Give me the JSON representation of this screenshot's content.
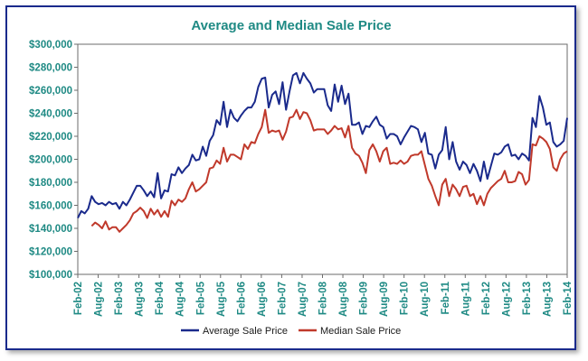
{
  "chart_data": {
    "type": "line",
    "title": "Average and Median Sale Price",
    "xlabel": "",
    "ylabel": "",
    "ylim": [
      100000,
      300000
    ],
    "ytick_labels": [
      "$100,000",
      "$120,000",
      "$140,000",
      "$160,000",
      "$180,000",
      "$200,000",
      "$220,000",
      "$240,000",
      "$260,000",
      "$280,000",
      "$300,000"
    ],
    "xtick_labels": [
      "Feb-02",
      "Aug-02",
      "Feb-03",
      "Aug-03",
      "Feb-04",
      "Aug-04",
      "Feb-05",
      "Aug-05",
      "Feb-06",
      "Aug-06",
      "Feb-07",
      "Aug-07",
      "Feb-08",
      "Aug-08",
      "Feb-09",
      "Aug-09",
      "Feb-10",
      "Aug-10",
      "Feb-11",
      "Aug-11",
      "Feb-12",
      "Aug-12",
      "Feb-13",
      "Aug-13",
      "Feb-14"
    ],
    "legend_position": "bottom",
    "grid": false,
    "series": [
      {
        "name": "Average Sale Price",
        "color": "#1a2a8c",
        "values": [
          149000,
          155000,
          153000,
          157000,
          168000,
          163000,
          161000,
          162000,
          160000,
          163000,
          161000,
          162000,
          157000,
          163000,
          160000,
          165000,
          171000,
          177000,
          177000,
          173000,
          168000,
          172000,
          167000,
          188000,
          166000,
          173000,
          172000,
          187000,
          186000,
          193000,
          188000,
          192000,
          195000,
          204000,
          199000,
          200000,
          211000,
          203000,
          216000,
          221000,
          234000,
          230000,
          250000,
          228000,
          243000,
          236000,
          233000,
          238000,
          242000,
          245000,
          245000,
          250000,
          263000,
          270000,
          271000,
          245000,
          256000,
          259000,
          248000,
          267000,
          243000,
          259000,
          273000,
          275000,
          266000,
          275000,
          270000,
          266000,
          258000,
          261000,
          261000,
          261000,
          247000,
          242000,
          265000,
          250000,
          264000,
          248000,
          257000,
          230000,
          230000,
          232000,
          222000,
          229000,
          228000,
          233000,
          237000,
          230000,
          228000,
          218000,
          222000,
          222000,
          220000,
          213000,
          219000,
          224000,
          229000,
          228000,
          226000,
          215000,
          223000,
          205000,
          204000,
          192000,
          204000,
          208000,
          228000,
          200000,
          215000,
          198000,
          191000,
          198000,
          195000,
          188000,
          196000,
          190000,
          181000,
          198000,
          183000,
          194000,
          205000,
          204000,
          206000,
          211000,
          213000,
          203000,
          204000,
          200000,
          205000,
          203000,
          199000,
          236000,
          228000,
          255000,
          245000,
          230000,
          232000,
          215000,
          211000,
          213000,
          216000,
          236000
        ]
      },
      {
        "name": "Median Sale Price",
        "color": "#c0392b",
        "values": [
          null,
          null,
          null,
          null,
          142000,
          145000,
          143000,
          140000,
          146000,
          139000,
          141000,
          141000,
          137000,
          140000,
          143000,
          147000,
          153000,
          155000,
          158000,
          155000,
          149000,
          157000,
          152000,
          156000,
          150000,
          155000,
          150000,
          164000,
          160000,
          165000,
          163000,
          166000,
          174000,
          180000,
          172000,
          174000,
          177000,
          180000,
          192000,
          193000,
          199000,
          196000,
          210000,
          198000,
          204000,
          204000,
          202000,
          200000,
          213000,
          209000,
          215000,
          214000,
          222000,
          228000,
          243000,
          223000,
          225000,
          224000,
          225000,
          217000,
          224000,
          236000,
          237000,
          243000,
          235000,
          241000,
          240000,
          234000,
          225000,
          226000,
          226000,
          226000,
          222000,
          225000,
          229000,
          226000,
          227000,
          219000,
          229000,
          210000,
          205000,
          203000,
          197000,
          188000,
          208000,
          213000,
          207000,
          198000,
          207000,
          210000,
          196000,
          197000,
          196000,
          199000,
          196000,
          198000,
          203000,
          204000,
          204000,
          207000,
          195000,
          183000,
          177000,
          168000,
          160000,
          178000,
          183000,
          168000,
          178000,
          174000,
          168000,
          176000,
          177000,
          168000,
          170000,
          161000,
          168000,
          160000,
          170000,
          175000,
          178000,
          181000,
          183000,
          190000,
          180000,
          180000,
          181000,
          189000,
          187000,
          178000,
          182000,
          213000,
          212000,
          220000,
          218000,
          215000,
          209000,
          193000,
          190000,
          200000,
          205000,
          207000
        ]
      }
    ]
  }
}
